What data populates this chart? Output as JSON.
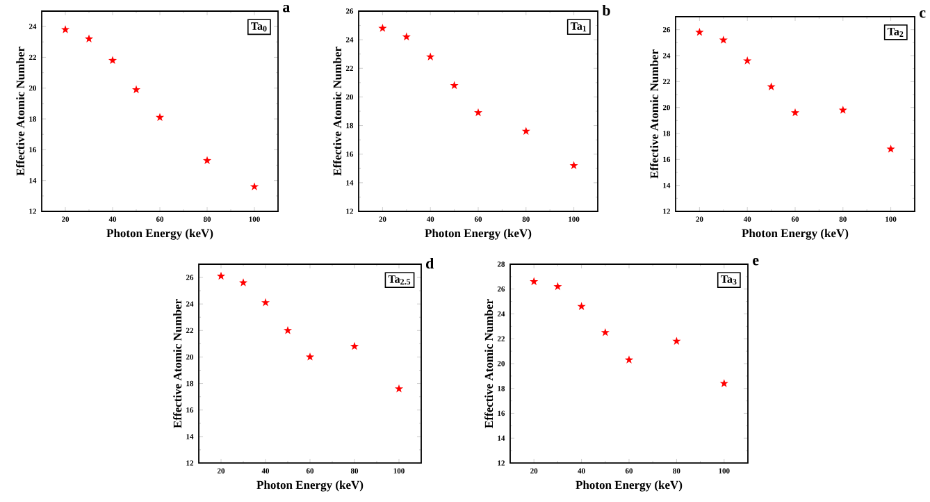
{
  "chart_data": [
    {
      "type": "scatter",
      "title": "a",
      "xlabel": "Photon Energy (keV)",
      "ylabel": "Effective Atomic Number",
      "annotations": [
        "Ta$_{0}$"
      ],
      "x": [
        20,
        30,
        40,
        50,
        60,
        80,
        100
      ],
      "series": [
        {
          "color": "#ff0000",
          "values": [
            23.8,
            23.2,
            21.8,
            19.9,
            18.1,
            15.3,
            13.6
          ]
        }
      ],
      "marker": "star",
      "xlim": [
        10,
        110
      ],
      "ylim": [
        12,
        25
      ],
      "xticks": [
        20,
        40,
        60,
        80,
        100
      ],
      "yticks": [
        12,
        14,
        16,
        18,
        20,
        22,
        24
      ]
    },
    {
      "type": "scatter",
      "title": "b",
      "xlabel": "Photon Energy (keV)",
      "ylabel": "Effective Atomic Number",
      "annotations": [
        "Ta$_{1}$"
      ],
      "x": [
        20,
        30,
        40,
        50,
        60,
        80,
        100
      ],
      "series": [
        {
          "color": "#ff0000",
          "values": [
            24.8,
            24.2,
            22.8,
            20.8,
            18.9,
            17.6,
            15.2
          ]
        }
      ],
      "marker": "star",
      "xlim": [
        10,
        110
      ],
      "ylim": [
        12,
        26
      ],
      "xticks": [
        20,
        40,
        60,
        80,
        100
      ],
      "yticks": [
        12,
        14,
        16,
        18,
        20,
        22,
        24,
        26
      ]
    },
    {
      "type": "scatter",
      "title": "c",
      "xlabel": "Photon Energy (keV)",
      "ylabel": "Effective Atomic Number",
      "annotations": [
        "Ta$_{2}$"
      ],
      "x": [
        20,
        30,
        40,
        50,
        60,
        80,
        100
      ],
      "series": [
        {
          "color": "#ff0000",
          "values": [
            25.8,
            25.2,
            23.6,
            21.6,
            19.6,
            19.8,
            16.8
          ]
        }
      ],
      "marker": "star",
      "xlim": [
        10,
        110
      ],
      "ylim": [
        12,
        27
      ],
      "xticks": [
        20,
        40,
        60,
        80,
        100
      ],
      "yticks": [
        12,
        14,
        16,
        18,
        20,
        22,
        24,
        26
      ]
    },
    {
      "type": "scatter",
      "title": "d",
      "xlabel": "Photon Energy (keV)",
      "ylabel": "Effective Atomic Number",
      "annotations": [
        "Ta$_{2.5}$"
      ],
      "x": [
        20,
        30,
        40,
        50,
        60,
        80,
        100
      ],
      "series": [
        {
          "color": "#ff0000",
          "values": [
            26.1,
            25.6,
            24.1,
            22.0,
            20.0,
            20.8,
            17.6
          ]
        }
      ],
      "marker": "star",
      "xlim": [
        10,
        110
      ],
      "ylim": [
        12,
        27
      ],
      "xticks": [
        20,
        40,
        60,
        80,
        100
      ],
      "yticks": [
        12,
        14,
        16,
        18,
        20,
        22,
        24,
        26
      ]
    },
    {
      "type": "scatter",
      "title": "e",
      "xlabel": "Photon Energy (keV)",
      "ylabel": "Effective Atomic Number",
      "annotations": [
        "Ta$_{3}$"
      ],
      "x": [
        20,
        30,
        40,
        50,
        60,
        80,
        100
      ],
      "series": [
        {
          "color": "#ff0000",
          "values": [
            26.6,
            26.2,
            24.6,
            22.5,
            20.3,
            21.8,
            18.4
          ]
        }
      ],
      "marker": "star",
      "xlim": [
        10,
        110
      ],
      "ylim": [
        12,
        28
      ],
      "xticks": [
        20,
        40,
        60,
        80,
        100
      ],
      "yticks": [
        12,
        14,
        16,
        18,
        20,
        22,
        24,
        26,
        28
      ]
    }
  ]
}
